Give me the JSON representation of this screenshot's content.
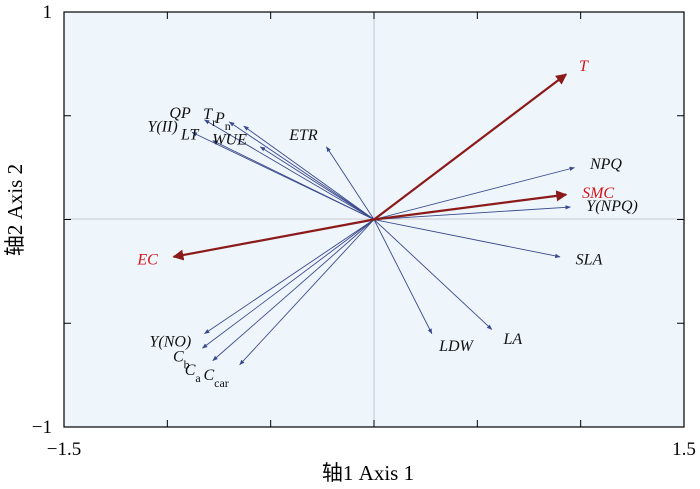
{
  "chart_data": {
    "type": "biplot",
    "xlabel": "轴1 Axis 1",
    "ylabel": "轴2 Axis 2",
    "xlim": [
      -1.5,
      1.5
    ],
    "ylim": [
      -1,
      1
    ],
    "x_tick_labels": [
      "−1.5",
      "1.5"
    ],
    "y_tick_labels": [
      "1",
      "−1"
    ],
    "grid": false,
    "colors": {
      "plot_background": "#eef5fb",
      "response_arrow": "#3b4a8c",
      "explanatory_arrow": "#8b1a1a",
      "explanatory_label": "#d4151b",
      "response_label": "#111111",
      "zero_line": "#b8bcc4"
    },
    "response_variables": [
      {
        "name": "QP",
        "sub": "",
        "x": -0.82,
        "y": 0.48
      },
      {
        "name": "T",
        "sub": "r",
        "x": -0.7,
        "y": 0.47
      },
      {
        "name": "P",
        "sub": "n",
        "x": -0.63,
        "y": 0.45
      },
      {
        "name": "Y(II)",
        "sub": "",
        "x": -0.88,
        "y": 0.42
      },
      {
        "name": "LT",
        "sub": "",
        "x": -0.78,
        "y": 0.38
      },
      {
        "name": "WUE",
        "sub": "",
        "x": -0.55,
        "y": 0.35
      },
      {
        "name": "ETR",
        "sub": "",
        "x": -0.23,
        "y": 0.35
      },
      {
        "name": "Y(NO)",
        "sub": "",
        "x": -0.82,
        "y": -0.55
      },
      {
        "name": "C",
        "sub": "b",
        "x": -0.83,
        "y": -0.62
      },
      {
        "name": "C",
        "sub": "a",
        "x": -0.78,
        "y": -0.68
      },
      {
        "name": "C",
        "sub": "car",
        "x": -0.65,
        "y": -0.7
      },
      {
        "name": "LDW",
        "sub": "",
        "x": 0.28,
        "y": -0.55
      },
      {
        "name": "LA",
        "sub": "",
        "x": 0.57,
        "y": -0.53
      },
      {
        "name": "SLA",
        "sub": "",
        "x": 0.9,
        "y": -0.18
      },
      {
        "name": "NPQ",
        "sub": "",
        "x": 0.97,
        "y": 0.25
      },
      {
        "name": "Y(NPQ)",
        "sub": "",
        "x": 0.95,
        "y": 0.06
      }
    ],
    "explanatory_variables": [
      {
        "name": "T",
        "x": 0.93,
        "y": 0.7
      },
      {
        "name": "SMC",
        "x": 0.93,
        "y": 0.12
      },
      {
        "name": "EC",
        "x": -0.97,
        "y": -0.18
      }
    ]
  }
}
